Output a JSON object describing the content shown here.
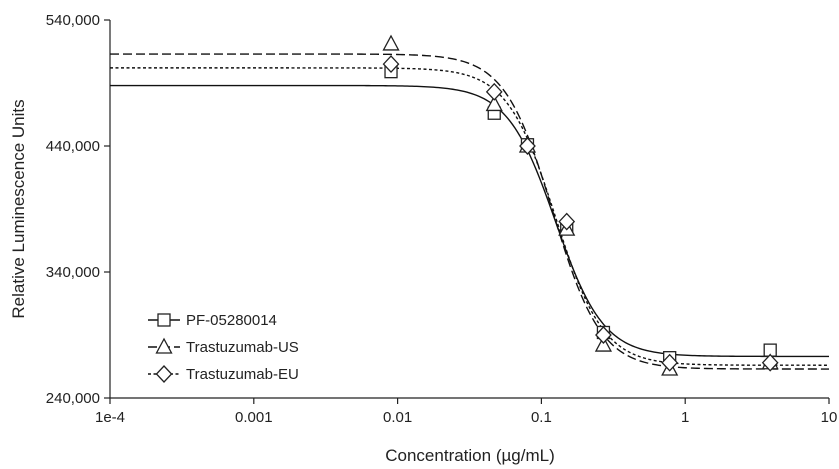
{
  "chart_data": {
    "type": "scatter",
    "xlabel": "Concentration (µg/mL)",
    "ylabel": "Relative Luminescence Units",
    "xscale": "log",
    "xlim": [
      0.0001,
      10
    ],
    "ylim": [
      240000,
      540000
    ],
    "x_tick_labels": [
      "1e-4",
      "0.001",
      "0.01",
      "0.1",
      "1",
      "10"
    ],
    "x_tick_values": [
      0.0001,
      0.001,
      0.01,
      0.1,
      1,
      10
    ],
    "y_tick_labels": [
      "240,000",
      "340,000",
      "440,000",
      "540,000"
    ],
    "y_tick_values": [
      240000,
      340000,
      440000,
      540000
    ],
    "grid": false,
    "legend_position": "bottom-left",
    "series": [
      {
        "name": "PF-05280014",
        "marker": "square",
        "line_style": "solid",
        "points": [
          {
            "x": 0.009,
            "y": 499000
          },
          {
            "x": 0.047,
            "y": 466000
          },
          {
            "x": 0.08,
            "y": 441000
          },
          {
            "x": 0.15,
            "y": 376000
          },
          {
            "x": 0.27,
            "y": 292000
          },
          {
            "x": 0.78,
            "y": 272000
          },
          {
            "x": 3.9,
            "y": 278000
          }
        ],
        "fit": {
          "top": 488000,
          "bottom": 273000,
          "ec50": 0.125,
          "hill": 2.6
        }
      },
      {
        "name": "Trastuzumab-US",
        "marker": "triangle",
        "line_style": "dashed",
        "points": [
          {
            "x": 0.009,
            "y": 521000
          },
          {
            "x": 0.047,
            "y": 473000
          },
          {
            "x": 0.08,
            "y": 440000
          },
          {
            "x": 0.15,
            "y": 374000
          },
          {
            "x": 0.27,
            "y": 282000
          },
          {
            "x": 0.78,
            "y": 263000
          },
          {
            "x": 3.9,
            "y": 268000
          }
        ],
        "fit": {
          "top": 513000,
          "bottom": 263000,
          "ec50": 0.12,
          "hill": 2.6
        }
      },
      {
        "name": "Trastuzumab-EU",
        "marker": "diamond",
        "line_style": "dotted",
        "points": [
          {
            "x": 0.009,
            "y": 505000
          },
          {
            "x": 0.047,
            "y": 483000
          },
          {
            "x": 0.08,
            "y": 440000
          },
          {
            "x": 0.15,
            "y": 380000
          },
          {
            "x": 0.27,
            "y": 290000
          },
          {
            "x": 0.78,
            "y": 268000
          },
          {
            "x": 3.9,
            "y": 268000
          }
        ],
        "fit": {
          "top": 502000,
          "bottom": 266000,
          "ec50": 0.125,
          "hill": 2.6
        }
      }
    ]
  }
}
